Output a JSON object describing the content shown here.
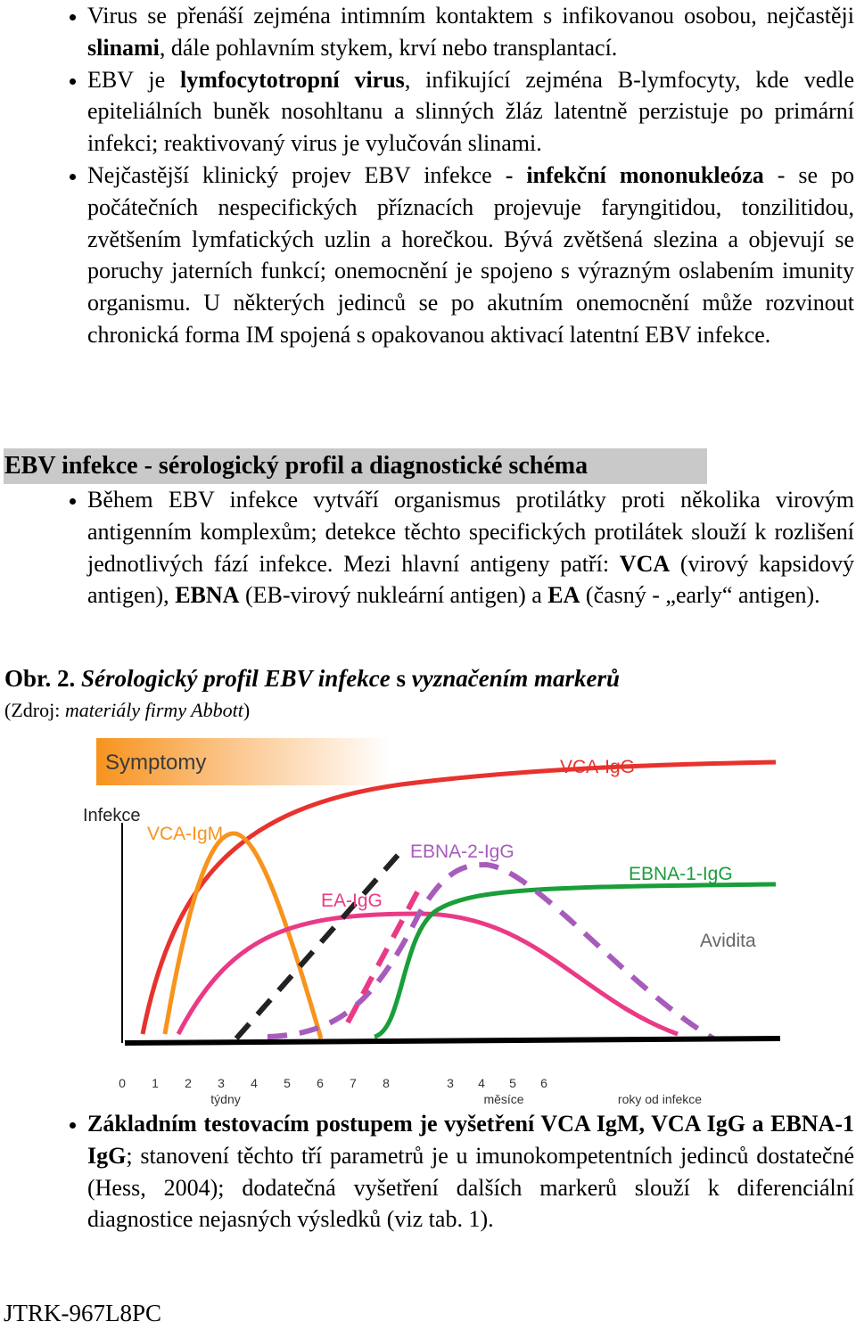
{
  "bullets_top": [
    [
      "Virus se přenáší zejména intimním kontaktem s infikovanou osobou, nejčastěji ",
      {
        "text": "slinami",
        "style": "bold"
      },
      ", dále pohlavním stykem, krví nebo transplantací."
    ],
    [
      "EBV je ",
      {
        "text": "lymfocytotropní virus",
        "style": "bold"
      },
      ", infikující zejména B-lymfocyty, kde vedle epiteliálních buněk nosohltanu a slinných žláz latentně perzistuje po primární infekci; reaktivovaný virus je vylučován slinami."
    ],
    [
      "Nejčastější klinický projev EBV infekce ",
      {
        "text": "- infekční mononukleóza",
        "style": "bold"
      },
      " - se po počátečních nespecifických příznacích projevuje faryngitidou, tonzilitidou, zvětšením lymfatických uzlin a horečkou. Bývá zvětšená slezina a objevují se poruchy jaterních funkcí; onemocnění je spojeno s výrazným oslabením imunity organismu. U některých jedinců se po akutním onemocnění může rozvinout chronická forma IM spojená s opakovanou aktivací latentní EBV infekce."
    ]
  ],
  "section": {
    "heading": "EBV infekce - sérologický profil a diagnostické schéma",
    "bullets": [
      [
        "Během EBV infekce vytváří organismus protilátky proti několika virovým antigenním komplexům; detekce těchto specifických protilátek slouží k rozlišení jednotlivých fází infekce. Mezi hlavní antigeny patří: ",
        {
          "text": "VCA",
          "style": "bold"
        },
        " (virový kapsidový antigen), ",
        {
          "text": "EBNA",
          "style": "bold"
        },
        " (EB-virový nukleární antigen) a ",
        {
          "text": "EA",
          "style": "bold"
        },
        " (časný - „early“ antigen)."
      ]
    ]
  },
  "figure": {
    "caption": [
      {
        "text": "Obr. 2. ",
        "style": "bold"
      },
      {
        "text": "Sérologický profil EBV infekce",
        "style": "bold-italic"
      },
      {
        "text": " s ",
        "style": "bold"
      },
      {
        "text": "vyznačením markerů",
        "style": "bold-italic"
      }
    ],
    "source": [
      "(Zdroj: ",
      {
        "text": "materiály firmy Abbott",
        "style": "italic"
      },
      ")"
    ],
    "labels": {
      "symptoms": "Symptomy",
      "infection": "Infekce",
      "vca_igg": "VCA-IgG",
      "vca_igm": "VCA-IgM",
      "ebna2_igg": "EBNA-2-IgG",
      "ebna1_igg": "EBNA-1-IgG",
      "ea_igg": "EA-IgG",
      "avidity": "Avidita"
    },
    "weeks": [
      0,
      1,
      2,
      3,
      4,
      5,
      6,
      7,
      8
    ],
    "months": [
      3,
      4,
      5,
      6
    ],
    "units": {
      "weeks": "týdny",
      "months": "měsíce",
      "years": "roky od infekce"
    }
  },
  "bullets_bottom": [
    [
      {
        "text": "Základním testovacím postupem je vyšetření VCA IgM, VCA IgG a EBNA-1 IgG",
        "style": "bold"
      },
      "; stanovení těchto tří parametrů je u imunokompetentních jedinců dostatečné (Hess, 2004); dodatečná vyšetření dalších markerů slouží k diferenciální diagnostice nejasných výsledků (viz tab. 1)."
    ]
  ],
  "footer": "JTRK-967L8PC"
}
